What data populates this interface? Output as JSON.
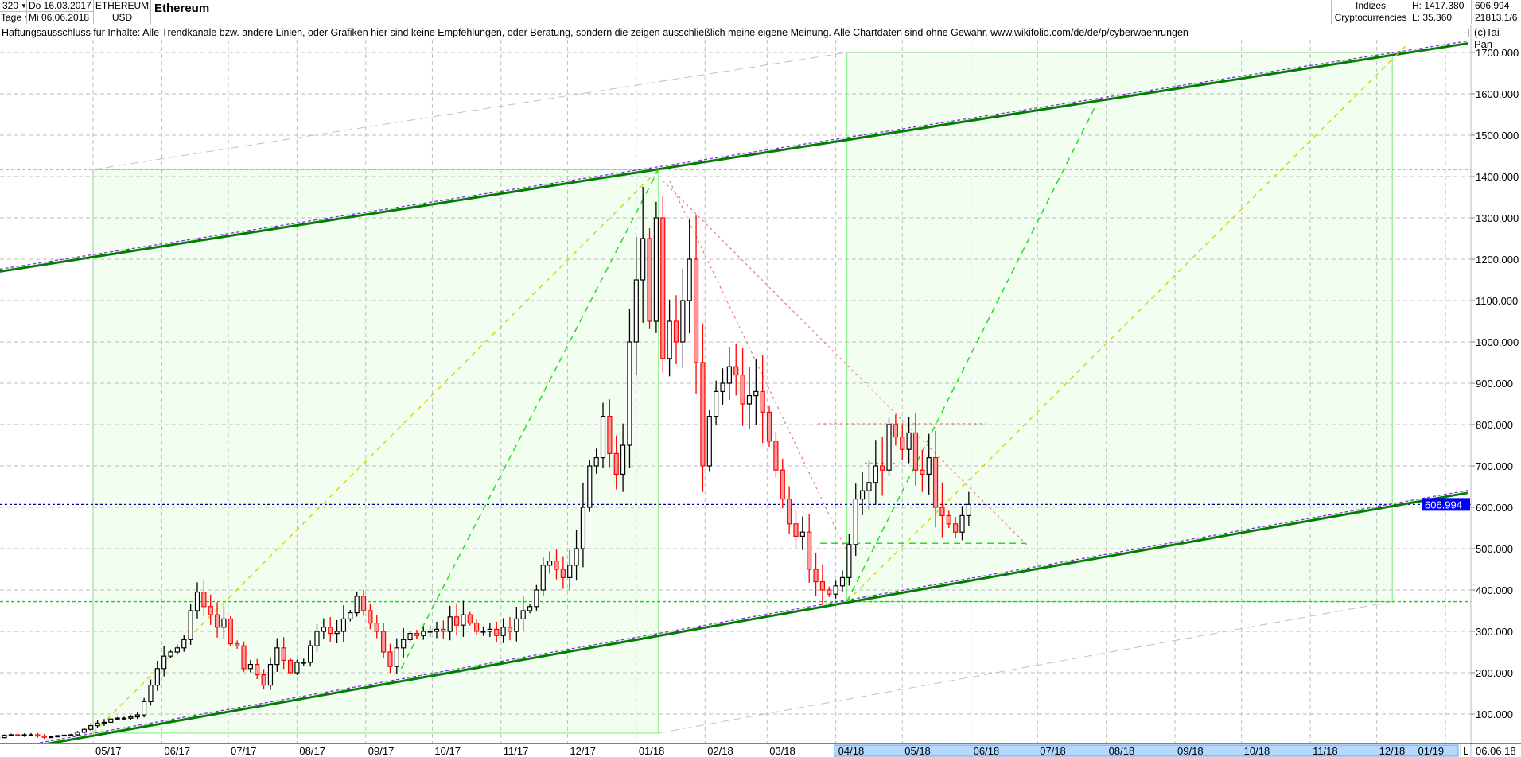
{
  "header": {
    "period_value": "320",
    "period_unit": "Tage",
    "start_date": "Do 16.03.2017",
    "end_date": "Mi 06.06.2018",
    "symbol": "ETHEREUM",
    "currency": "USD",
    "title": "Ethereum",
    "group": "Indizes",
    "subgroup": "Cryptocurrencies",
    "high": "H: 1417.380",
    "low": "L: 35.360",
    "last": "606.994",
    "extra": "21813.1/6"
  },
  "disclaimer": "Haftungsausschluss für Inhalte: Alle Trendkanäle bzw. andere Linien, oder Grafiken hier sind keine Empfehlungen, oder Beratung, sondern die zeigen ausschließlich meine eigene Meinung. Alle Chartdaten sind ohne Gewähr.  www.wikifolio.com/de/de/p/cyberwaehrungen",
  "copyright": "(c)Tai-Pan",
  "collapse_button": "−",
  "chart_data": {
    "type": "candlestick",
    "title": "Ethereum",
    "ylim": [
      0,
      1730
    ],
    "xlim": [
      "2017-03-16",
      "2019-01-31"
    ],
    "grid": true,
    "y_ticks": [
      "100.000",
      "200.000",
      "300.000",
      "400.000",
      "500.000",
      "600.000",
      "700.000",
      "800.000",
      "900.000",
      "1000.000",
      "1100.000",
      "1200.000",
      "1300.000",
      "1400.000",
      "1500.000",
      "1600.000",
      "1700.000"
    ],
    "y_tick_values": [
      100,
      200,
      300,
      400,
      500,
      600,
      700,
      800,
      900,
      1000,
      1100,
      1200,
      1300,
      1400,
      1500,
      1600,
      1700
    ],
    "x_ticks": [
      {
        "date": "2017-05-01",
        "label": "05/17"
      },
      {
        "date": "2017-06-01",
        "label": "06/17"
      },
      {
        "date": "2017-07-01",
        "label": "07/17"
      },
      {
        "date": "2017-08-01",
        "label": "08/17"
      },
      {
        "date": "2017-09-01",
        "label": "09/17"
      },
      {
        "date": "2017-10-01",
        "label": "10/17"
      },
      {
        "date": "2017-11-01",
        "label": "11/17"
      },
      {
        "date": "2017-12-01",
        "label": "12/17"
      },
      {
        "date": "2018-01-01",
        "label": "01/18"
      },
      {
        "date": "2018-02-01",
        "label": "02/18"
      },
      {
        "date": "2018-03-01",
        "label": "03/18"
      },
      {
        "date": "2018-04-01",
        "label": "04/18"
      },
      {
        "date": "2018-05-01",
        "label": "05/18"
      },
      {
        "date": "2018-06-01",
        "label": "06/18"
      },
      {
        "date": "2018-07-01",
        "label": "07/18"
      },
      {
        "date": "2018-08-01",
        "label": "08/18"
      },
      {
        "date": "2018-09-01",
        "label": "09/18"
      },
      {
        "date": "2018-10-01",
        "label": "10/18"
      },
      {
        "date": "2018-11-01",
        "label": "11/18"
      },
      {
        "date": "2018-12-01",
        "label": "12/18"
      },
      {
        "date": "2019-01-01",
        "label": "01/19"
      }
    ],
    "x_highlight": [
      "2018-04-01",
      "2019-01-31"
    ],
    "x_end_marker": "L",
    "x_end_date": "06.06.18",
    "last_price": 606.994,
    "last_price_label": "606.994",
    "series_start": "2017-03-16",
    "series_step_days": 3,
    "closes": [
      44,
      43,
      49,
      50,
      48,
      50,
      50,
      47,
      44,
      45,
      48,
      49,
      50,
      56,
      63,
      72,
      78,
      80,
      88,
      90,
      90,
      93,
      98,
      130,
      170,
      210,
      240,
      250,
      260,
      280,
      350,
      395,
      360,
      340,
      310,
      330,
      270,
      265,
      210,
      220,
      195,
      170,
      220,
      260,
      230,
      200,
      225,
      225,
      265,
      300,
      310,
      295,
      300,
      330,
      345,
      385,
      350,
      320,
      300,
      250,
      215,
      260,
      280,
      295,
      290,
      300,
      300,
      305,
      300,
      335,
      315,
      340,
      320,
      300,
      300,
      305,
      290,
      310,
      300,
      330,
      350,
      360,
      400,
      460,
      470,
      450,
      430,
      460,
      500,
      600,
      700,
      720,
      820,
      730,
      680,
      750,
      1000,
      1150,
      1250,
      1050,
      1300,
      960,
      1050,
      1000,
      1100,
      1200,
      950,
      700,
      820,
      880,
      900,
      940,
      920,
      850,
      870,
      880,
      830,
      760,
      690,
      620,
      560,
      530,
      540,
      450,
      420,
      400,
      390,
      410,
      430,
      510,
      620,
      640,
      660,
      700,
      690,
      800,
      770,
      740,
      780,
      690,
      680,
      720,
      600,
      580,
      560,
      540,
      580,
      607
    ],
    "colors": {
      "up": "#000000",
      "down": "#ff0000",
      "down_fill": "#ff9a9a",
      "channel": "#008000",
      "channel_shadow": "#8a2be2",
      "box_fill": "#f2fff0",
      "box_edge": "#90ee90",
      "last_price_bg": "#0000ff",
      "highlight": "#b4d8ff"
    },
    "trendlines": [
      {
        "kind": "channel",
        "from": [
          "2017-03-10",
          1162
        ],
        "to": [
          "2019-01-11",
          1722
        ]
      },
      {
        "kind": "channel",
        "from": [
          "2017-04-07",
          25
        ],
        "to": [
          "2019-01-11",
          635
        ]
      },
      {
        "kind": "gray-dash",
        "from": [
          "2017-05-01",
          1417
        ],
        "to": [
          "2018-04-06",
          1700
        ]
      },
      {
        "kind": "gray-dash",
        "from": [
          "2018-01-11",
          54
        ],
        "to": [
          "2018-12-08",
          372
        ]
      },
      {
        "kind": "yellow-dash",
        "from": [
          "2017-05-01",
          54
        ],
        "to": [
          "2018-01-11",
          1417
        ]
      },
      {
        "kind": "yellow-dash",
        "from": [
          "2018-04-06",
          372
        ],
        "to": [
          "2018-12-15",
          1721
        ]
      },
      {
        "kind": "green-dash",
        "from": [
          "2017-09-17",
          210
        ],
        "to": [
          "2018-01-11",
          1417
        ]
      },
      {
        "kind": "green-dash",
        "from": [
          "2018-04-06",
          372
        ],
        "to": [
          "2018-07-27",
          1569
        ]
      },
      {
        "kind": "red-dot",
        "from": [
          "2018-01-13",
          1390
        ],
        "to": [
          "2018-06-26",
          510
        ]
      },
      {
        "kind": "red-dot",
        "from": [
          "2018-01-16",
          1390
        ],
        "to": [
          "2018-04-08",
          470
        ]
      },
      {
        "kind": "red-dot",
        "from": [
          "2018-03-24",
          802
        ],
        "to": [
          "2018-06-08",
          802
        ]
      },
      {
        "kind": "red-dot",
        "from": [
          "2018-04-14",
          707
        ],
        "to": [
          "2018-04-28",
          707
        ]
      },
      {
        "kind": "green-dash",
        "from": [
          "2018-03-25",
          513
        ],
        "to": [
          "2018-06-26",
          513
        ]
      }
    ],
    "boxes": [
      {
        "from": [
          "2017-05-01",
          54
        ],
        "to": [
          "2018-01-11",
          1417
        ]
      },
      {
        "from": [
          "2018-04-06",
          372
        ],
        "to": [
          "2018-12-08",
          1700
        ]
      }
    ],
    "hlines": [
      {
        "price": 1417,
        "kind": "red-dot"
      },
      {
        "price": 372,
        "kind": "green-dot"
      },
      {
        "price": 606.994,
        "kind": "blue-dot"
      }
    ]
  }
}
